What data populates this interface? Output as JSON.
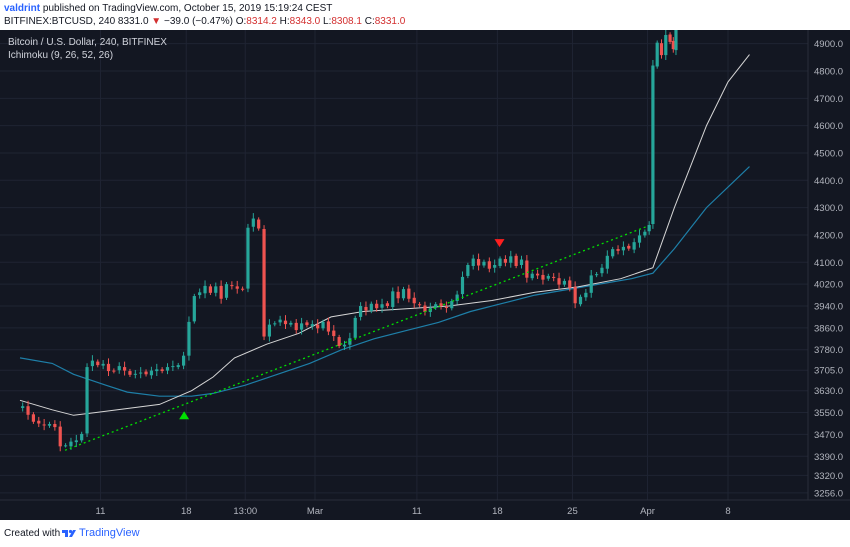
{
  "header": {
    "author": "valdrint",
    "published_text": "published on TradingView.com, October 15, 2019 15:19:24 CEST",
    "symbol": "BITFINEX:BTCUSD, 240",
    "last_price": "8331.0",
    "change_arrow": "▼",
    "change": "−39.0 (−0.47%)",
    "ohlc": [
      {
        "label": "O:",
        "value": "8314.2"
      },
      {
        "label": "H:",
        "value": "8343.0"
      },
      {
        "label": "L:",
        "value": "8308.1"
      },
      {
        "label": "C:",
        "value": "8331.0"
      }
    ]
  },
  "legend": {
    "title": "Bitcoin / U.S. Dollar, 240, BITFINEX",
    "indicator": "Ichimoku (9, 26, 52, 26)"
  },
  "footer": {
    "created_with": "Created with",
    "brand": "TradingView"
  },
  "colors": {
    "background": "#131722",
    "grid": "#1f2433",
    "axis_text": "#b2b5be",
    "up_candle": "#26a69a",
    "down_candle": "#ef5350",
    "trendline": "#00e000",
    "line_white": "#d6d6d6",
    "line_blue": "#1e7fa8",
    "buy_marker": "#00e000",
    "sell_marker": "#ff1f1f"
  },
  "chart_data": {
    "type": "candlestick",
    "y_ticks": [
      "4900.0",
      "4800.0",
      "4700.0",
      "4600.0",
      "4500.0",
      "4400.0",
      "4300.0",
      "4200.0",
      "4100.0",
      "4020.0",
      "3940.0",
      "3860.0",
      "3780.0",
      "3705.0",
      "3630.0",
      "3550.0",
      "3470.0",
      "3390.0",
      "3320.0",
      "3256.0"
    ],
    "ylim": [
      3230,
      4950
    ],
    "x_ticks": [
      "11",
      "18",
      "13:00",
      "Mar",
      "11",
      "18",
      "25",
      "Apr",
      "8"
    ],
    "xlim": [
      0,
      66
    ],
    "x_tick_positions": [
      7.5,
      15.5,
      21,
      27.5,
      37,
      44.5,
      51.5,
      58.5,
      66
    ],
    "close_path": [
      [
        0,
        3565
      ],
      [
        0.5,
        3575
      ],
      [
        1,
        3540
      ],
      [
        1.5,
        3520
      ],
      [
        2,
        3510
      ],
      [
        2.5,
        3500
      ],
      [
        3,
        3510
      ],
      [
        3.5,
        3495
      ],
      [
        4,
        3430
      ],
      [
        4.5,
        3430
      ],
      [
        5,
        3440
      ],
      [
        5.5,
        3450
      ],
      [
        6,
        3470
      ],
      [
        6.5,
        3720
      ],
      [
        7,
        3740
      ],
      [
        7.5,
        3720
      ],
      [
        8,
        3730
      ],
      [
        8.5,
        3700
      ],
      [
        9,
        3705
      ],
      [
        9.5,
        3720
      ],
      [
        10,
        3700
      ],
      [
        10.5,
        3690
      ],
      [
        11,
        3690
      ],
      [
        11.5,
        3700
      ],
      [
        12,
        3690
      ],
      [
        12.5,
        3700
      ],
      [
        13,
        3710
      ],
      [
        13.5,
        3700
      ],
      [
        14,
        3720
      ],
      [
        14.5,
        3720
      ],
      [
        15,
        3720
      ],
      [
        15.5,
        3760
      ],
      [
        16,
        3880
      ],
      [
        16.5,
        3980
      ],
      [
        17,
        3990
      ],
      [
        17.5,
        4010
      ],
      [
        18,
        3990
      ],
      [
        18.5,
        4010
      ],
      [
        19,
        3970
      ],
      [
        19.5,
        4020
      ],
      [
        20,
        4010
      ],
      [
        20.5,
        4005
      ],
      [
        21,
        4000
      ],
      [
        21.5,
        4230
      ],
      [
        22,
        4260
      ],
      [
        22.5,
        4220
      ],
      [
        23,
        3830
      ],
      [
        23.5,
        3870
      ],
      [
        24,
        3880
      ],
      [
        24.5,
        3890
      ],
      [
        25,
        3870
      ],
      [
        25.5,
        3880
      ],
      [
        26,
        3850
      ],
      [
        26.5,
        3880
      ],
      [
        27,
        3870
      ],
      [
        27.5,
        3870
      ],
      [
        28,
        3860
      ],
      [
        28.5,
        3880
      ],
      [
        29,
        3850
      ],
      [
        29.5,
        3830
      ],
      [
        30,
        3790
      ],
      [
        30.5,
        3800
      ],
      [
        31,
        3820
      ],
      [
        31.5,
        3900
      ],
      [
        32,
        3940
      ],
      [
        32.5,
        3920
      ],
      [
        33,
        3950
      ],
      [
        33.5,
        3930
      ],
      [
        34,
        3950
      ],
      [
        34.5,
        3940
      ],
      [
        35,
        3990
      ],
      [
        35.5,
        3970
      ],
      [
        36,
        4000
      ],
      [
        36.5,
        3970
      ],
      [
        37,
        3950
      ],
      [
        37.5,
        3940
      ],
      [
        38,
        3920
      ],
      [
        38.5,
        3930
      ],
      [
        39,
        3950
      ],
      [
        39.5,
        3940
      ],
      [
        40,
        3930
      ],
      [
        40.5,
        3960
      ],
      [
        41,
        3980
      ],
      [
        41.5,
        4050
      ],
      [
        42,
        4090
      ],
      [
        42.5,
        4110
      ],
      [
        43,
        4090
      ],
      [
        43.5,
        4100
      ],
      [
        44,
        4080
      ],
      [
        44.5,
        4090
      ],
      [
        45,
        4110
      ],
      [
        45.5,
        4100
      ],
      [
        46,
        4120
      ],
      [
        46.5,
        4090
      ],
      [
        47,
        4110
      ],
      [
        47.5,
        4040
      ],
      [
        48,
        4060
      ],
      [
        48.5,
        4050
      ],
      [
        49,
        4040
      ],
      [
        49.5,
        4050
      ],
      [
        50,
        4040
      ],
      [
        50.5,
        4020
      ],
      [
        51,
        4030
      ],
      [
        51.5,
        4010
      ],
      [
        52,
        3950
      ],
      [
        52.5,
        3970
      ],
      [
        53,
        3990
      ],
      [
        53.5,
        4050
      ],
      [
        54,
        4060
      ],
      [
        54.5,
        4080
      ],
      [
        55,
        4120
      ],
      [
        55.5,
        4150
      ],
      [
        56,
        4140
      ],
      [
        56.5,
        4160
      ],
      [
        57,
        4150
      ],
      [
        57.5,
        4170
      ],
      [
        58,
        4200
      ],
      [
        58.5,
        4210
      ],
      [
        58.8,
        4240
      ],
      [
        59.2,
        4820
      ],
      [
        59.6,
        4900
      ],
      [
        60,
        4860
      ],
      [
        60.4,
        4930
      ],
      [
        60.8,
        4910
      ],
      [
        61,
        4880
      ],
      [
        61.3,
        4950
      ]
    ],
    "trendline": {
      "from": [
        4.2,
        3412
      ],
      "to": [
        58.5,
        4232
      ]
    },
    "white_line": [
      [
        0,
        3595
      ],
      [
        3,
        3560
      ],
      [
        5,
        3540
      ],
      [
        7,
        3550
      ],
      [
        10,
        3565
      ],
      [
        13,
        3580
      ],
      [
        16,
        3630
      ],
      [
        18,
        3680
      ],
      [
        20,
        3750
      ],
      [
        23,
        3800
      ],
      [
        26,
        3840
      ],
      [
        29,
        3900
      ],
      [
        32,
        3920
      ],
      [
        36,
        3930
      ],
      [
        40,
        3940
      ],
      [
        44,
        3960
      ],
      [
        48,
        3990
      ],
      [
        52,
        4010
      ],
      [
        56,
        4040
      ],
      [
        59,
        4080
      ],
      [
        61,
        4300
      ],
      [
        64,
        4600
      ],
      [
        66,
        4760
      ],
      [
        68,
        4860
      ]
    ],
    "blue_line": [
      [
        0,
        3750
      ],
      [
        3,
        3730
      ],
      [
        5,
        3690
      ],
      [
        8,
        3650
      ],
      [
        10,
        3625
      ],
      [
        13,
        3610
      ],
      [
        16,
        3610
      ],
      [
        18,
        3620
      ],
      [
        21,
        3650
      ],
      [
        24,
        3690
      ],
      [
        27,
        3730
      ],
      [
        30,
        3780
      ],
      [
        33,
        3820
      ],
      [
        36,
        3850
      ],
      [
        39,
        3880
      ],
      [
        42,
        3920
      ],
      [
        45,
        3950
      ],
      [
        48,
        3980
      ],
      [
        51,
        4000
      ],
      [
        54,
        4020
      ],
      [
        57,
        4040
      ],
      [
        59,
        4060
      ],
      [
        61,
        4150
      ],
      [
        64,
        4300
      ],
      [
        68,
        4450
      ]
    ],
    "markers": [
      {
        "type": "buy",
        "x": 15.3,
        "y": 3540
      },
      {
        "type": "sell",
        "x": 44.7,
        "y": 4170
      }
    ]
  }
}
